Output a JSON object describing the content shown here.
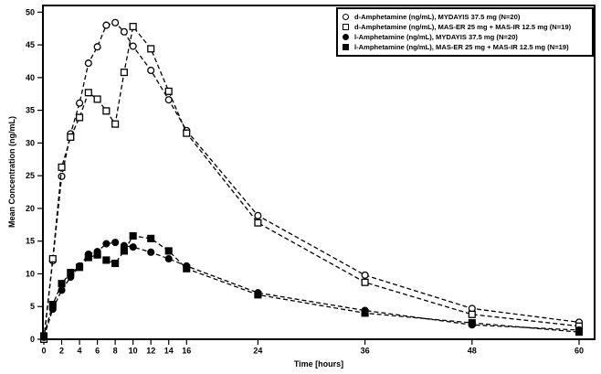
{
  "colors": {
    "foreground": "#000000",
    "background": "#ffffff"
  },
  "axes": {
    "x_label": "Time [hours]",
    "y_label": "Mean Concentration (ng/mL)",
    "x_ticks": [
      0,
      2,
      4,
      6,
      8,
      10,
      12,
      14,
      16,
      24,
      36,
      48,
      60
    ],
    "y_ticks": [
      0,
      5,
      10,
      15,
      20,
      25,
      30,
      35,
      40,
      45,
      50
    ],
    "xlim": [
      0,
      60
    ],
    "ylim": [
      0,
      50
    ]
  },
  "legend": {
    "items": [
      {
        "marker": "open-circle",
        "label": "d-Amphetamine (ng/mL), MYDAYIS 37.5 mg (N=20)"
      },
      {
        "marker": "open-square",
        "label": "d-Amphetamine (ng/mL), MAS-ER 25 mg + MAS-IR 12.5 mg (N=19)"
      },
      {
        "marker": "filled-circle",
        "label": "l-Amphetamine (ng/mL), MYDAYIS 37.5 mg (N=20)"
      },
      {
        "marker": "filled-square",
        "label": "l-Amphetamine (ng/mL), MAS-ER 25 mg + MAS-IR 12.5 mg (N=19)"
      }
    ]
  },
  "chart_data": {
    "type": "line",
    "title": "",
    "xlabel": "Time [hours]",
    "ylabel": "Mean Concentration (ng/mL)",
    "xlim": [
      0,
      60
    ],
    "ylim": [
      0,
      50
    ],
    "grid": false,
    "line_style": "dashed",
    "legend_position": "top-right",
    "x": [
      0,
      1,
      2,
      3,
      4,
      5,
      6,
      7,
      8,
      9,
      10,
      12,
      14,
      16,
      24,
      36,
      48,
      60
    ],
    "series": [
      {
        "name": "d-Amphetamine (ng/mL), MYDAYIS 37.5 mg (N=20)",
        "marker": "open-circle",
        "values": [
          0,
          12.0,
          24.9,
          31.4,
          36.1,
          42.2,
          44.7,
          48.0,
          48.4,
          47.0,
          44.8,
          41.1,
          36.6,
          31.9,
          18.9,
          9.8,
          4.7,
          2.6
        ]
      },
      {
        "name": "d-Amphetamine (ng/mL), MAS-ER 25 mg + MAS-IR 12.5 mg (N=19)",
        "marker": "open-square",
        "values": [
          0,
          12.3,
          26.3,
          30.9,
          33.9,
          37.7,
          36.7,
          34.9,
          32.9,
          40.8,
          47.8,
          44.4,
          37.9,
          31.5,
          17.8,
          8.7,
          3.8,
          2.0
        ]
      },
      {
        "name": "l-Amphetamine (ng/mL), MYDAYIS 37.5 mg (N=20)",
        "marker": "filled-circle",
        "values": [
          0.3,
          4.6,
          7.5,
          9.5,
          11.2,
          13.0,
          13.4,
          14.6,
          14.8,
          14.3,
          14.1,
          13.3,
          12.3,
          11.2,
          7.1,
          4.4,
          2.2,
          1.4
        ]
      },
      {
        "name": "l-Amphetamine (ng/mL), MAS-ER 25 mg + MAS-IR 12.5 mg (N=19)",
        "marker": "filled-square",
        "values": [
          0.5,
          5.3,
          8.5,
          10.2,
          11.0,
          12.5,
          12.9,
          12.1,
          11.6,
          13.5,
          15.8,
          15.4,
          13.5,
          10.8,
          6.8,
          4.0,
          2.5,
          1.1
        ]
      }
    ]
  }
}
